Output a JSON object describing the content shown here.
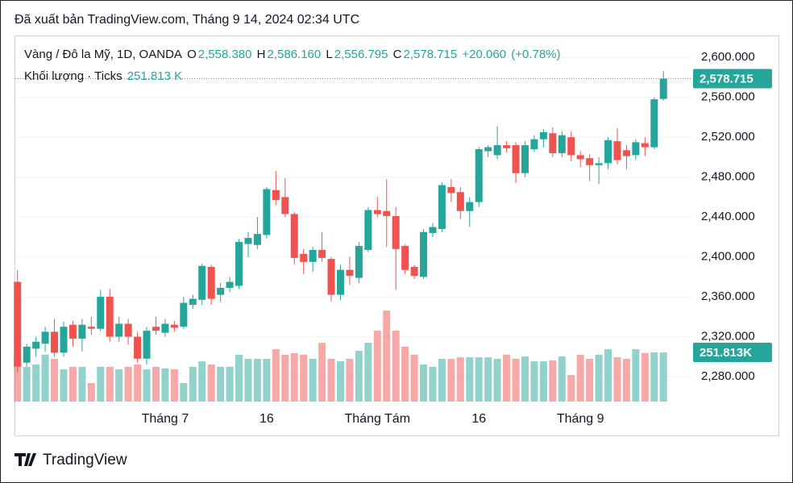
{
  "header": "Đã xuất bản TradingView.com, Tháng 9 14, 2024 02:34 UTC",
  "footer": "TradingView",
  "chart_data": {
    "type": "candlestick",
    "title": "Vàng / Đô la Mỹ, 1D, OANDA",
    "ohlc_letters": [
      "O",
      "H",
      "L",
      "C"
    ],
    "last_labels": {
      "open": "2,558.380",
      "high": "2,586.160",
      "low": "2,556.795",
      "close": "2,578.715",
      "change": "+20.060",
      "change_pct": "(+0.78%)"
    },
    "volume_title": "Khối lượng · Ticks",
    "volume_label": "251.813 K",
    "volume_badge": "251.813K",
    "categories": [
      null,
      null,
      null,
      null,
      null,
      null,
      null,
      null,
      null,
      null,
      null,
      null,
      null,
      null,
      null,
      null,
      "Tháng 7",
      null,
      null,
      null,
      null,
      null,
      null,
      null,
      null,
      null,
      null,
      "16",
      null,
      null,
      null,
      null,
      null,
      null,
      null,
      null,
      null,
      null,
      null,
      "Tháng Tám",
      null,
      null,
      null,
      null,
      null,
      null,
      null,
      null,
      null,
      null,
      "16",
      null,
      null,
      null,
      null,
      null,
      null,
      null,
      null,
      null,
      null,
      "Tháng 9",
      null,
      null,
      null,
      null,
      null,
      null,
      null,
      null,
      null
    ],
    "open": [
      2375,
      2294,
      2308,
      2313,
      2325,
      2304,
      2332,
      2318,
      2330,
      2328,
      2360,
      2320,
      2333,
      2320,
      2298,
      2330,
      2324,
      2332,
      2330,
      2352,
      2357,
      2390,
      2362,
      2369,
      2371,
      2413,
      2412,
      2422,
      2467,
      2460,
      2443,
      2403,
      2395,
      2407,
      2398,
      2362,
      2387,
      2379,
      2407,
      2447,
      2446,
      2441,
      2411,
      2390,
      2380,
      2424,
      2428,
      2470,
      2465,
      2446,
      2455,
      2506,
      2502,
      2512,
      2512,
      2484,
      2508,
      2518,
      2524,
      2504,
      2520,
      2502,
      2499,
      2492,
      2494,
      2516,
      2507,
      2502,
      2514,
      2510,
      2558.38
    ],
    "high": [
      2387,
      2313,
      2320,
      2330,
      2338,
      2335,
      2336,
      2338,
      2340,
      2367,
      2368,
      2340,
      2338,
      2325,
      2330,
      2340,
      2338,
      2336,
      2360,
      2362,
      2393,
      2392,
      2374,
      2380,
      2418,
      2425,
      2440,
      2470,
      2486,
      2479,
      2445,
      2408,
      2410,
      2425,
      2400,
      2392,
      2400,
      2415,
      2450,
      2460,
      2478,
      2450,
      2413,
      2392,
      2428,
      2434,
      2475,
      2478,
      2470,
      2460,
      2510,
      2512,
      2531,
      2516,
      2515,
      2516,
      2522,
      2528,
      2530,
      2526,
      2526,
      2506,
      2503,
      2500,
      2520,
      2529,
      2512,
      2518,
      2520,
      2560,
      2586.16
    ],
    "low": [
      2284,
      2290,
      2300,
      2305,
      2300,
      2300,
      2310,
      2305,
      2322,
      2325,
      2315,
      2315,
      2312,
      2294,
      2292,
      2322,
      2320,
      2325,
      2328,
      2348,
      2352,
      2352,
      2355,
      2365,
      2368,
      2400,
      2408,
      2418,
      2452,
      2440,
      2392,
      2383,
      2385,
      2395,
      2355,
      2357,
      2372,
      2374,
      2405,
      2440,
      2410,
      2367,
      2383,
      2378,
      2378,
      2420,
      2425,
      2455,
      2438,
      2430,
      2450,
      2500,
      2498,
      2505,
      2474,
      2480,
      2505,
      2510,
      2500,
      2500,
      2496,
      2490,
      2476,
      2473,
      2488,
      2493,
      2488,
      2497,
      2501,
      2508,
      2556.795
    ],
    "close": [
      2290,
      2310,
      2315,
      2325,
      2304,
      2330,
      2318,
      2332,
      2328,
      2360,
      2320,
      2333,
      2320,
      2298,
      2326,
      2326,
      2333,
      2329,
      2354,
      2358,
      2391,
      2358,
      2369,
      2375,
      2415,
      2419,
      2423,
      2468,
      2457,
      2443,
      2399,
      2395,
      2407,
      2399,
      2362,
      2387,
      2381,
      2411,
      2447,
      2443,
      2441,
      2408,
      2387,
      2381,
      2425,
      2430,
      2472,
      2464,
      2446,
      2455,
      2508,
      2510,
      2512,
      2509,
      2484,
      2512,
      2518,
      2525,
      2504,
      2522,
      2502,
      2498,
      2492,
      2494,
      2517,
      2497,
      2501,
      2515,
      2510,
      2558,
      2578.715
    ],
    "volume": [
      240,
      178,
      190,
      240,
      219,
      165,
      178,
      178,
      95,
      178,
      178,
      165,
      178,
      190,
      165,
      178,
      170,
      165,
      95,
      178,
      206,
      190,
      178,
      178,
      240,
      219,
      219,
      219,
      268,
      240,
      248,
      240,
      219,
      301,
      219,
      206,
      219,
      260,
      301,
      363,
      466,
      363,
      281,
      240,
      190,
      178,
      219,
      219,
      227,
      227,
      227,
      227,
      219,
      240,
      219,
      231,
      206,
      206,
      211,
      231,
      136,
      240,
      219,
      240,
      268,
      227,
      219,
      268,
      248,
      252,
      251.813
    ],
    "up_color": "#26a69a",
    "down_color": "#ef5350",
    "ylim": [
      2255,
      2622
    ],
    "y2lim": [
      0,
      1875
    ],
    "yticks": [
      {
        "value": 2280,
        "label": "2,280.000"
      },
      {
        "value": 2320,
        "label": "2,320.000"
      },
      {
        "value": 2360,
        "label": "2,360.000"
      },
      {
        "value": 2400,
        "label": "2,400.000"
      },
      {
        "value": 2440,
        "label": "2,440.000"
      },
      {
        "value": 2480,
        "label": "2,480.000"
      },
      {
        "value": 2520,
        "label": "2,520.000"
      },
      {
        "value": 2560,
        "label": "2,560.000"
      },
      {
        "value": 2600,
        "label": "2,600.000"
      }
    ],
    "grid": true
  }
}
